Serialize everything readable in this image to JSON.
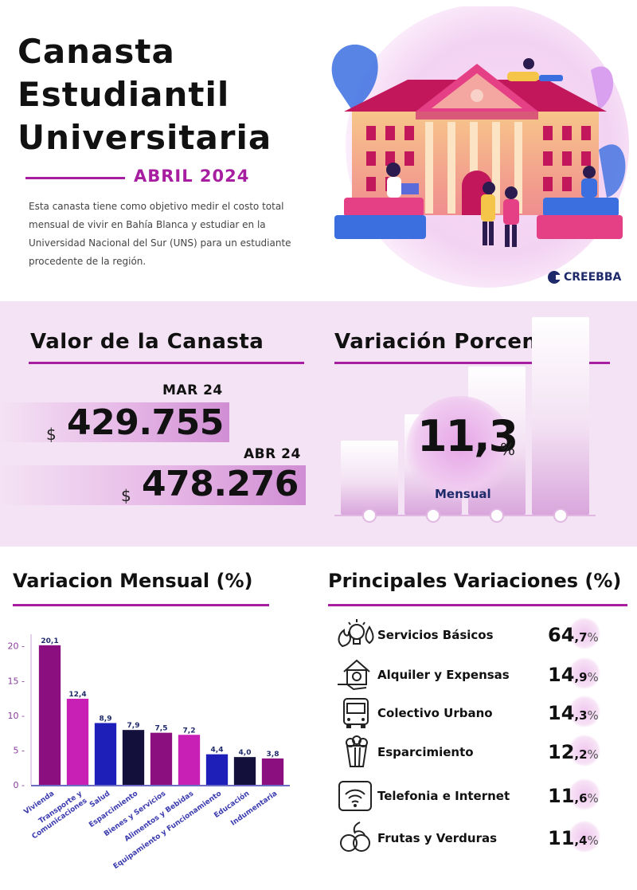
{
  "header": {
    "title_lines": [
      "Canasta",
      "Estudiantil",
      "Universitaria"
    ],
    "date": "ABRIL 2024",
    "description": "Esta canasta tiene como objetivo medir el costo total mensual de vivir en Bahía Blanca y estudiar en la Universidad Nacional del Sur (UNS) para un estudiante procedente de la región.",
    "brand": "CREEBBA"
  },
  "valor": {
    "title": "Valor de la Canasta",
    "currency": "$",
    "items": [
      {
        "month": "MAR 24",
        "amount": "429.755"
      },
      {
        "month": "ABR 24",
        "amount": "478.276"
      }
    ]
  },
  "variacion": {
    "title": "Variación Porcentual",
    "value": "11,3",
    "symbol": "%",
    "label": "Mensual"
  },
  "chart_data": {
    "type": "bar",
    "title": "Variacion Mensual (%)",
    "categories": [
      "Vivienda",
      "Transporte y Comunicaciones",
      "Salud",
      "Esparcimiento",
      "Bienes y Servicios",
      "Alimentos y Bebidas",
      "Equipamiento y Funcionamiento",
      "Educación",
      "Indumentaria"
    ],
    "category_lines": [
      [
        "Vivienda"
      ],
      [
        "Transporte y",
        "Comunicaciones"
      ],
      [
        "Salud"
      ],
      [
        "Esparcimiento"
      ],
      [
        "Bienes y Servicios"
      ],
      [
        "Alimentos y Bebidas"
      ],
      [
        "Equipamiento y Funcionamiento"
      ],
      [
        "Educación"
      ],
      [
        "Indumentaria"
      ]
    ],
    "values": [
      20.1,
      12.4,
      8.9,
      7.9,
      7.5,
      7.2,
      4.4,
      4.0,
      3.8
    ],
    "value_labels": [
      "20,1",
      "12,4",
      "8,9",
      "7,9",
      "7,5",
      "7,2",
      "4,4",
      "4,0",
      "3,8"
    ],
    "colors": [
      "#8b0f7e",
      "#c81fb4",
      "#1d1fb8",
      "#14103c",
      "#8b0f7e",
      "#c81fb4",
      "#1d1fb8",
      "#14103c",
      "#8b0f7e"
    ],
    "yticks": [
      0,
      5,
      10,
      15,
      20
    ],
    "ylim": [
      0,
      21
    ],
    "xlabel": "",
    "ylabel": "",
    "grid": false
  },
  "principales": {
    "title": "Principales Variaciones (%)",
    "items": [
      {
        "label": "Servicios Básicos",
        "int": "64",
        "dec": ",7",
        "pct": "%",
        "icon": "utilities-icon"
      },
      {
        "label": "Alquiler y Expensas",
        "int": "14",
        "dec": ",9",
        "pct": "%",
        "icon": "house-rent-icon"
      },
      {
        "label": "Colectivo Urbano",
        "int": "14",
        "dec": ",3",
        "pct": "%",
        "icon": "bus-icon"
      },
      {
        "label": "Esparcimiento",
        "int": "12",
        "dec": ",2",
        "pct": "%",
        "icon": "popcorn-icon"
      },
      {
        "label": "Telefonia e Internet",
        "int": "11",
        "dec": ",6",
        "pct": "%",
        "icon": "phone-wifi-icon"
      },
      {
        "label": "Frutas y Verduras",
        "int": "11",
        "dec": ",4",
        "pct": "%",
        "icon": "fruits-icon"
      }
    ]
  },
  "colors": {
    "accent": "#a71fa0",
    "band": "#f4e3f4",
    "navy": "#1f2a6b"
  }
}
